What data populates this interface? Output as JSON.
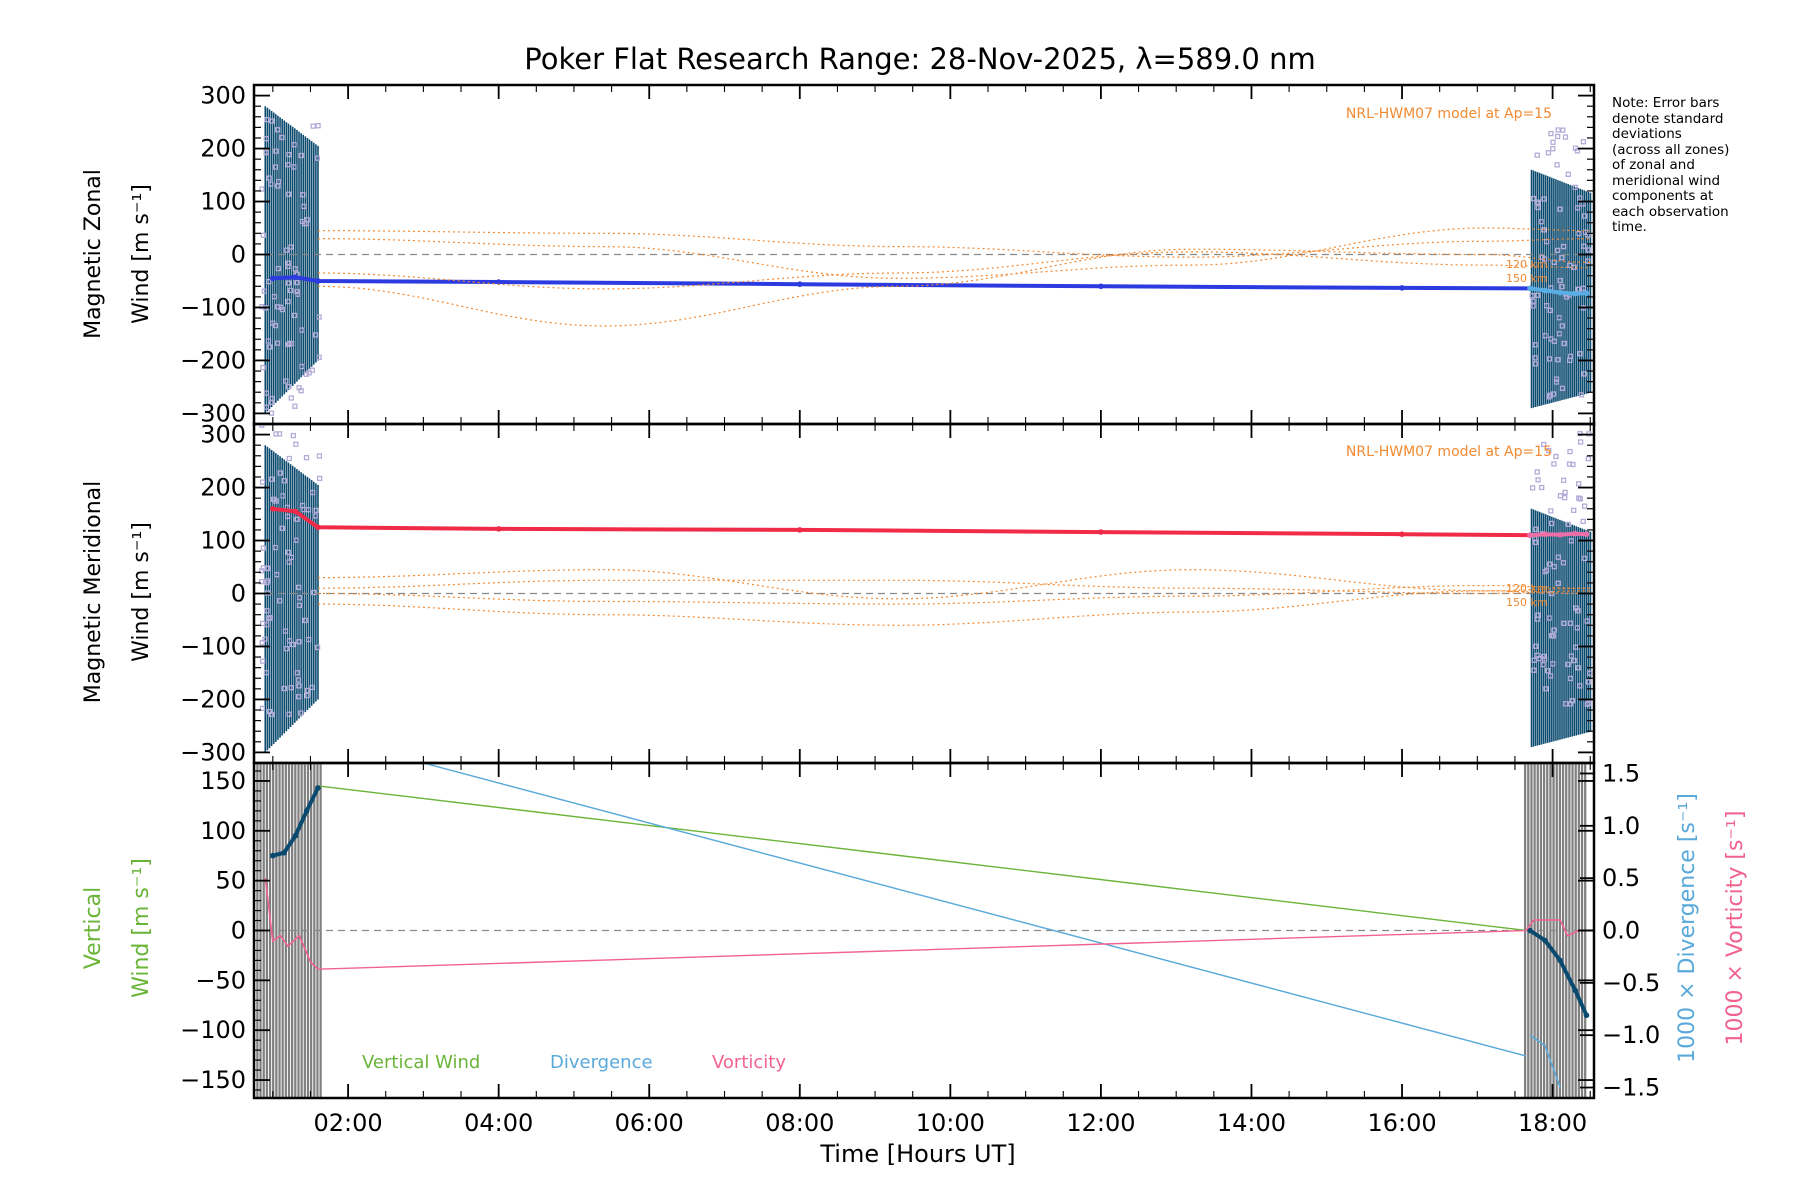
{
  "title": "Poker Flat Research Range: 28-Nov-2025, λ=589.0 nm",
  "note": "Note: Error bars\ndenote standard\ndeviations\n(across all zones)\nof zonal and\nmeridional wind\ncomponents at\neach observation\ntime.",
  "colors": {
    "zonal": "#2c3be0",
    "zonal_light": "#5aaee6",
    "meridional": "#ef2b48",
    "meridional_light": "#ee6fa8",
    "errorbar": "#0b4a6f",
    "zone_points": "#b3acd8",
    "model": "#f28a32",
    "vertical": "#6ab438",
    "divergence": "#59a9db",
    "vorticity": "#f2628e",
    "vertical_dark": "#0b4a6f",
    "gray_block": "#808080",
    "zero_line": "#888888"
  },
  "chart_data": [
    {
      "type": "scatter",
      "panel": "zonal",
      "ylabel_line1": "Magnetic Zonal",
      "ylabel_line2": "Wind [m s⁻¹]",
      "ylim": [
        -320,
        320
      ],
      "yticks": [
        -300,
        -200,
        -100,
        0,
        100,
        200,
        300
      ],
      "xlim": [
        0.75,
        18.55
      ],
      "annotation": "NRL-HWM07 model at Ap=15",
      "model_labels": [
        "120 km",
        "150 km"
      ],
      "series": [
        {
          "role": "wind",
          "x": [
            1.0,
            1.3,
            1.6,
            4.0,
            8.0,
            12.0,
            16.0,
            17.7
          ],
          "y": [
            -45,
            -43,
            -50,
            -52,
            -56,
            -60,
            -63,
            -64
          ]
        },
        {
          "role": "wind_end",
          "x": [
            17.7,
            17.9,
            18.1,
            18.3,
            18.45
          ],
          "y": [
            -64,
            -68,
            -72,
            -74,
            -73
          ]
        },
        {
          "role": "model",
          "x": [
            1.6,
            5.4,
            9.3,
            13.2,
            17.1,
            18.5
          ],
          "y": [
            -60,
            -135,
            -60,
            10,
            0,
            -15
          ]
        },
        {
          "role": "model",
          "x": [
            1.6,
            5.4,
            9.3,
            13.2,
            17.1,
            18.5
          ],
          "y": [
            45,
            40,
            15,
            -5,
            25,
            30
          ]
        },
        {
          "role": "model",
          "x": [
            1.6,
            5.4,
            9.3,
            13.2,
            17.1,
            18.5
          ],
          "y": [
            -35,
            -65,
            -35,
            5,
            -20,
            -25
          ]
        },
        {
          "role": "model",
          "x": [
            1.6,
            5.4,
            9.3,
            13.2,
            17.1,
            18.5
          ],
          "y": [
            30,
            15,
            -45,
            -20,
            50,
            45
          ]
        }
      ]
    },
    {
      "type": "scatter",
      "panel": "meridional",
      "ylabel_line1": "Magnetic Meridional",
      "ylabel_line2": "Wind [m s⁻¹]",
      "ylim": [
        -320,
        320
      ],
      "yticks": [
        -300,
        -200,
        -100,
        0,
        100,
        200,
        300
      ],
      "xlim": [
        0.75,
        18.55
      ],
      "annotation": "NRL-HWM07 model at Ap=15",
      "model_labels": [
        "120 km",
        "150 km"
      ],
      "series": [
        {
          "role": "wind",
          "x": [
            1.0,
            1.3,
            1.6,
            4.0,
            8.0,
            12.0,
            16.0,
            17.7
          ],
          "y": [
            160,
            155,
            125,
            122,
            120,
            116,
            112,
            110
          ]
        },
        {
          "role": "wind_end",
          "x": [
            17.7,
            17.9,
            18.1,
            18.3,
            18.45
          ],
          "y": [
            110,
            112,
            111,
            113,
            112
          ]
        },
        {
          "role": "model",
          "x": [
            1.6,
            5.4,
            9.3,
            13.2,
            17.1,
            18.5
          ],
          "y": [
            30,
            45,
            -10,
            45,
            5,
            10
          ]
        },
        {
          "role": "model",
          "x": [
            1.6,
            5.4,
            9.3,
            13.2,
            17.1,
            18.5
          ],
          "y": [
            -20,
            -40,
            -60,
            -35,
            5,
            0
          ]
        },
        {
          "role": "model",
          "x": [
            1.6,
            5.4,
            9.3,
            13.2,
            17.1,
            18.5
          ],
          "y": [
            10,
            25,
            25,
            10,
            0,
            5
          ]
        },
        {
          "role": "model",
          "x": [
            1.6,
            5.4,
            9.3,
            13.2,
            17.1,
            18.5
          ],
          "y": [
            0,
            -15,
            -20,
            -5,
            15,
            10
          ]
        }
      ]
    },
    {
      "type": "line",
      "panel": "vertical",
      "ylabel_line1": "Vertical",
      "ylabel_line2": "Wind [m s⁻¹]",
      "y2label_1": "1000 × Divergence [s⁻¹]",
      "y2label_2": "1000 × Vorticity [s⁻¹]",
      "xlabel": "Time [Hours UT]",
      "ylim": [
        -168,
        168
      ],
      "yticks": [
        -150,
        -100,
        -50,
        0,
        50,
        100,
        150
      ],
      "y2lim": [
        -1.6,
        1.6
      ],
      "y2ticks": [
        -1.5,
        -1.0,
        -0.5,
        0.0,
        0.5,
        1.0,
        1.5
      ],
      "y2ticklabels": [
        "−1.5",
        "−1.0",
        "−0.5",
        "0.0",
        "0.5",
        "1.0",
        "1.5"
      ],
      "xlim": [
        0.75,
        18.55
      ],
      "xticks": [
        2,
        4,
        6,
        8,
        10,
        12,
        14,
        16,
        18
      ],
      "xticklabels": [
        "02:00",
        "04:00",
        "06:00",
        "08:00",
        "10:00",
        "12:00",
        "14:00",
        "16:00",
        "18:00"
      ],
      "legend": [
        "Vertical Wind",
        "Divergence",
        "Vorticity"
      ],
      "series": [
        {
          "name": "Vertical Wind",
          "axis": "left",
          "x": [
            1.6,
            17.65
          ],
          "y": [
            145,
            0
          ]
        },
        {
          "name": "Divergence",
          "axis": "right",
          "x": [
            3.0,
            17.65
          ],
          "y": [
            1.6,
            -1.2
          ]
        },
        {
          "name": "Vorticity",
          "axis": "right",
          "x": [
            1.6,
            17.65
          ],
          "y": [
            -0.37,
            0.0
          ]
        },
        {
          "role": "vertical_start",
          "axis": "left",
          "x": [
            1.0,
            1.15,
            1.3,
            1.45,
            1.6
          ],
          "y": [
            75,
            78,
            95,
            120,
            143
          ]
        },
        {
          "role": "vertical_end",
          "axis": "left",
          "x": [
            17.7,
            17.9,
            18.1,
            18.3,
            18.45
          ],
          "y": [
            0,
            -10,
            -30,
            -60,
            -85
          ]
        },
        {
          "role": "vorticity_start",
          "axis": "right",
          "x": [
            0.9,
            1.0,
            1.1,
            1.2,
            1.35,
            1.5,
            1.6
          ],
          "y": [
            0.5,
            -0.1,
            -0.05,
            -0.15,
            -0.05,
            -0.3,
            -0.37
          ]
        },
        {
          "role": "vorticity_end",
          "axis": "right",
          "x": [
            17.65,
            17.75,
            17.9,
            18.1,
            18.2,
            18.35
          ],
          "y": [
            0.0,
            0.1,
            0.1,
            0.1,
            -0.05,
            0.0
          ]
        },
        {
          "role": "divergence_end",
          "axis": "right",
          "x": [
            17.7,
            17.9,
            18.1
          ],
          "y": [
            -1.0,
            -1.1,
            -1.5
          ]
        }
      ]
    }
  ]
}
